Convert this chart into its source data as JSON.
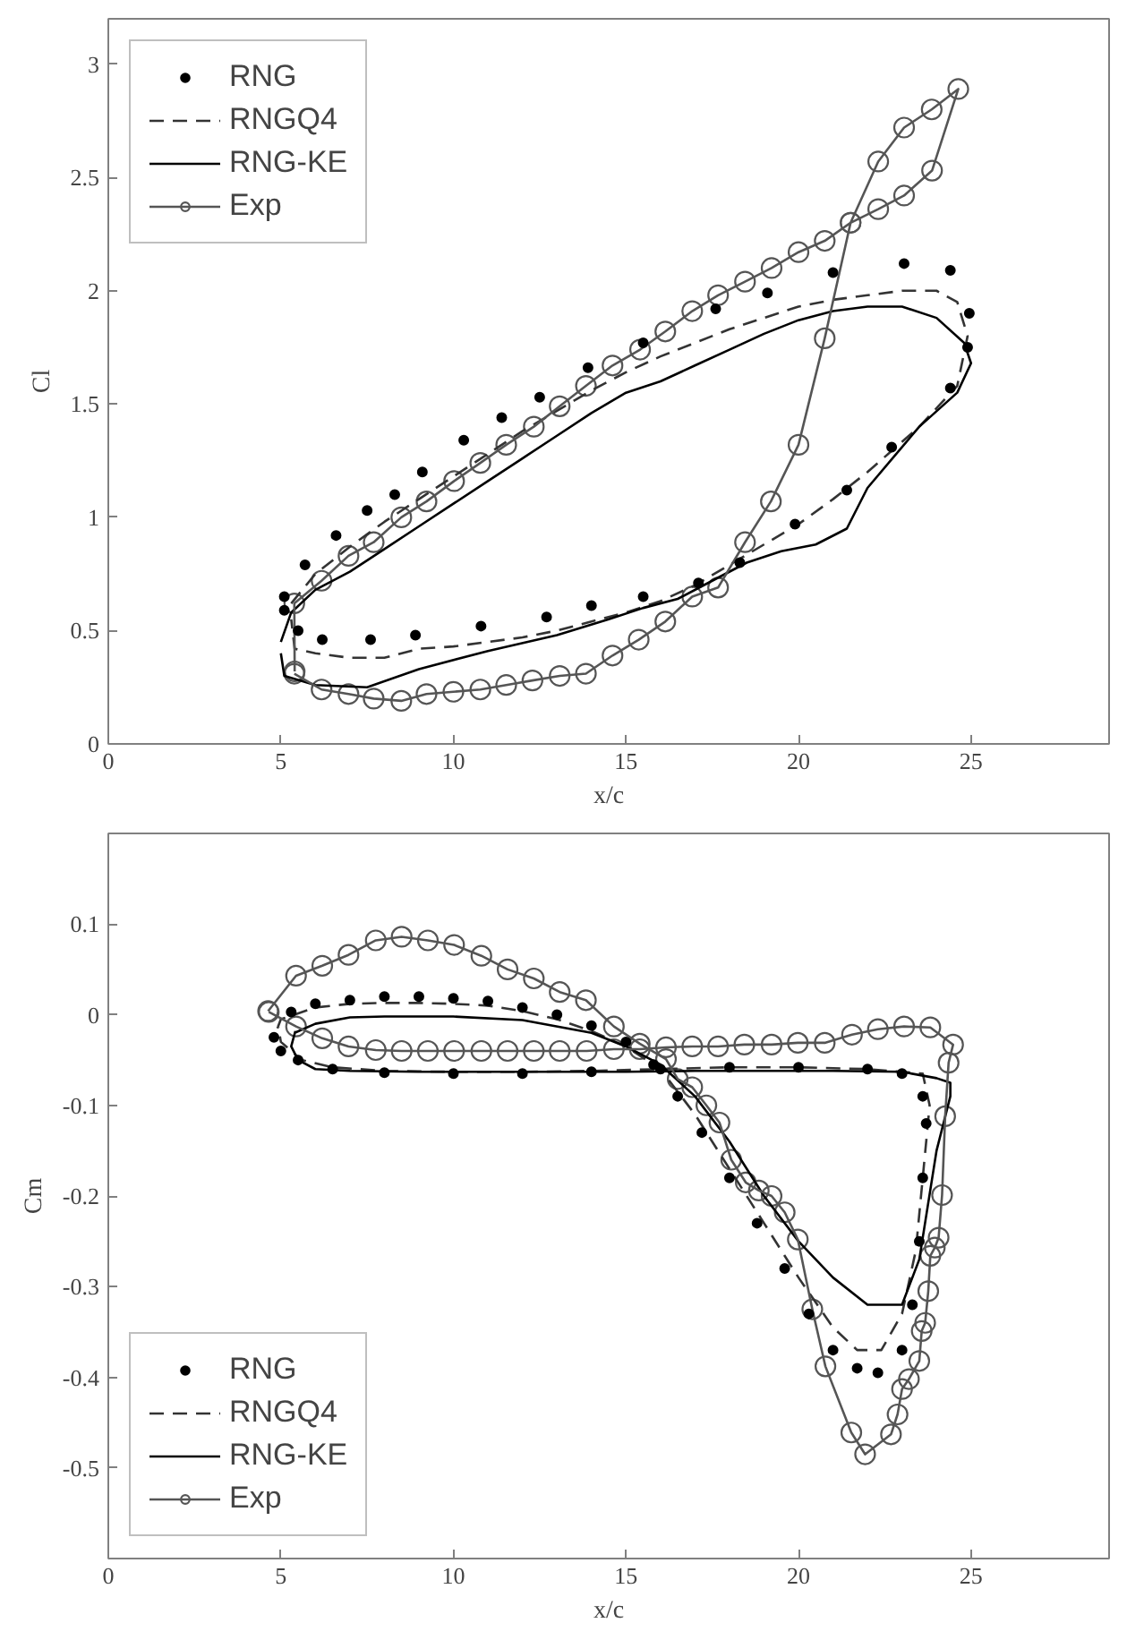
{
  "chart_data": [
    {
      "type": "line",
      "ylabel": "Cl",
      "xlabel": "x/c",
      "xlim": [
        0,
        29
      ],
      "ylim": [
        0,
        3.2
      ],
      "xticks": [
        0,
        5,
        10,
        15,
        20,
        25
      ],
      "yticks": [
        0,
        0.5,
        1,
        1.5,
        2,
        2.5,
        3
      ],
      "grid": false,
      "legend": "top left",
      "series": [
        {
          "name": "RNG",
          "type": "scatter",
          "marker": "circle",
          "color": "#000000",
          "x": [
            5.1,
            5.7,
            6.6,
            7.5,
            8.3,
            9.1,
            10.3,
            11.4,
            12.5,
            13.9,
            15.5,
            17.6,
            19.1,
            21,
            23.06,
            24.4,
            24.95,
            24.9,
            24.4,
            22.7,
            21.4,
            19.9,
            18.3,
            17.1,
            15.5,
            14,
            12.7,
            10.8,
            8.9,
            7.6,
            6.2,
            5.5,
            5.1
          ],
          "values": [
            0.65,
            0.79,
            0.92,
            1.03,
            1.1,
            1.2,
            1.34,
            1.44,
            1.53,
            1.66,
            1.77,
            1.92,
            1.99,
            2.08,
            2.12,
            2.09,
            1.9,
            1.75,
            1.57,
            1.31,
            1.12,
            0.97,
            0.8,
            0.71,
            0.65,
            0.61,
            0.56,
            0.52,
            0.48,
            0.46,
            0.46,
            0.5,
            0.59
          ]
        },
        {
          "name": "RNGQ4",
          "line_style": "dashed",
          "color": "#333333",
          "x": [
            5.3,
            6,
            7,
            8,
            9,
            10,
            11,
            12,
            13,
            14,
            15,
            16,
            17,
            18,
            19,
            20,
            21,
            22,
            23,
            24,
            24.6,
            24.9,
            24.6,
            23.5,
            22,
            21,
            20,
            19,
            18,
            17,
            16,
            15,
            14,
            13,
            12,
            11,
            10,
            9,
            8,
            7,
            6,
            5.4,
            5.3
          ],
          "values": [
            0.62,
            0.75,
            0.87,
            0.98,
            1.08,
            1.18,
            1.28,
            1.38,
            1.47,
            1.56,
            1.64,
            1.71,
            1.77,
            1.83,
            1.88,
            1.93,
            1.96,
            1.98,
            2.0,
            2.0,
            1.95,
            1.8,
            1.58,
            1.4,
            1.2,
            1.08,
            0.97,
            0.88,
            0.79,
            0.7,
            0.63,
            0.58,
            0.54,
            0.5,
            0.47,
            0.45,
            0.43,
            0.42,
            0.38,
            0.38,
            0.4,
            0.42,
            0.55
          ]
        },
        {
          "name": "RNG-KE",
          "line_style": "solid",
          "color": "#000000",
          "x": [
            5.0,
            5.3,
            6,
            7,
            8,
            9,
            10,
            11,
            12,
            13,
            14,
            15,
            16,
            17,
            18,
            19,
            20,
            21,
            22,
            23,
            24,
            24.8,
            25,
            24.6,
            23.5,
            22,
            21.4,
            20.5,
            19.5,
            18.5,
            17.5,
            16.5,
            15.5,
            14.5,
            13,
            11,
            9,
            7.5,
            6,
            5.1,
            5.0
          ],
          "values": [
            0.45,
            0.58,
            0.68,
            0.76,
            0.86,
            0.96,
            1.06,
            1.16,
            1.26,
            1.36,
            1.46,
            1.55,
            1.6,
            1.67,
            1.74,
            1.81,
            1.87,
            1.91,
            1.93,
            1.93,
            1.88,
            1.77,
            1.68,
            1.55,
            1.4,
            1.13,
            0.95,
            0.88,
            0.85,
            0.8,
            0.72,
            0.64,
            0.6,
            0.55,
            0.48,
            0.41,
            0.33,
            0.25,
            0.26,
            0.3,
            0.4
          ]
        },
        {
          "name": "Exp",
          "marker": "circle",
          "line_style": "solid",
          "color": "#555555",
          "x": [
            5.39,
            6.18,
            6.96,
            7.69,
            8.49,
            9.22,
            10.0,
            10.78,
            11.53,
            12.29,
            13.08,
            13.84,
            14.61,
            15.37,
            16.14,
            16.92,
            17.67,
            18.45,
            19.2,
            20.0,
            20.76,
            21.51,
            22.31,
            23.06,
            23.86,
            24.63,
            23.87,
            23.06,
            22.31,
            21.51,
            20.76,
            20.0,
            19.22,
            18.45,
            17.67,
            16.92,
            16.14,
            15.41,
            14.61,
            13.84,
            13.08,
            12.33,
            11.53,
            10.78,
            10.02,
            9.22,
            8.49,
            7.69,
            6.96,
            6.18,
            5.39,
            5.4
          ],
          "values": [
            0.31,
            0.24,
            0.22,
            0.2,
            0.19,
            0.22,
            0.23,
            0.24,
            0.26,
            0.28,
            0.3,
            0.31,
            0.39,
            0.46,
            0.54,
            0.65,
            0.69,
            0.89,
            1.07,
            1.32,
            1.79,
            2.3,
            2.57,
            2.72,
            2.8,
            2.89,
            2.53,
            2.42,
            2.36,
            2.3,
            2.22,
            2.17,
            2.1,
            2.04,
            1.98,
            1.91,
            1.82,
            1.74,
            1.67,
            1.58,
            1.49,
            1.4,
            1.32,
            1.24,
            1.16,
            1.07,
            1.0,
            0.89,
            0.83,
            0.72,
            0.62,
            0.32
          ]
        }
      ]
    },
    {
      "type": "line",
      "ylabel": "Cm",
      "xlabel": "x/c",
      "xlim": [
        0,
        29
      ],
      "ylim": [
        -0.6,
        0.2
      ],
      "xticks": [
        0,
        5,
        10,
        15,
        20,
        25
      ],
      "yticks": [
        -0.5,
        -0.4,
        -0.3,
        -0.2,
        -0.1,
        0,
        0.1
      ],
      "grid": false,
      "legend": "bottom left",
      "series": [
        {
          "name": "RNG",
          "type": "scatter",
          "marker": "circle",
          "color": "#000000",
          "x": [
            4.8,
            5.3,
            6,
            7,
            8,
            9,
            10,
            11,
            12,
            13,
            14,
            15,
            15.8,
            16.5,
            17.2,
            18,
            18.8,
            19.6,
            20.3,
            21,
            21.7,
            22.3,
            23,
            23.3,
            23.5,
            23.6,
            23.7,
            23.6,
            23,
            22,
            20,
            18,
            16,
            14,
            12,
            10,
            8,
            6.5,
            5.5,
            5.0
          ],
          "values": [
            -0.025,
            0.003,
            0.012,
            0.016,
            0.02,
            0.02,
            0.018,
            0.015,
            0.008,
            0.0,
            -0.012,
            -0.03,
            -0.055,
            -0.09,
            -0.13,
            -0.18,
            -0.23,
            -0.28,
            -0.33,
            -0.37,
            -0.39,
            -0.395,
            -0.37,
            -0.32,
            -0.25,
            -0.18,
            -0.12,
            -0.09,
            -0.065,
            -0.06,
            -0.058,
            -0.058,
            -0.06,
            -0.063,
            -0.065,
            -0.065,
            -0.064,
            -0.06,
            -0.05,
            -0.04
          ]
        },
        {
          "name": "RNGQ4",
          "line_style": "dashed",
          "color": "#333333",
          "x": [
            4.9,
            5.0,
            6,
            7,
            8,
            9,
            10,
            11,
            12,
            13,
            14,
            15,
            16,
            17,
            18,
            19,
            20,
            21,
            21.7,
            22.4,
            23,
            23.4,
            23.6,
            23.8,
            23.6,
            22,
            20,
            18,
            16,
            14,
            12,
            10,
            8,
            6.5,
            5.6,
            5.0,
            4.92
          ],
          "values": [
            -0.015,
            -0.005,
            0.008,
            0.012,
            0.013,
            0.013,
            0.012,
            0.01,
            0.004,
            -0.005,
            -0.018,
            -0.035,
            -0.06,
            -0.11,
            -0.17,
            -0.23,
            -0.29,
            -0.345,
            -0.37,
            -0.37,
            -0.33,
            -0.26,
            -0.18,
            -0.1,
            -0.065,
            -0.06,
            -0.058,
            -0.058,
            -0.06,
            -0.062,
            -0.063,
            -0.063,
            -0.062,
            -0.058,
            -0.05,
            -0.03,
            -0.012
          ]
        },
        {
          "name": "RNG-KE",
          "line_style": "solid",
          "color": "#000000",
          "x": [
            5.4,
            6,
            7,
            8,
            10,
            12,
            14,
            15,
            16,
            17,
            18,
            19,
            20,
            21,
            22,
            23,
            23.5,
            24,
            24.4,
            24.4,
            24,
            23,
            21,
            19,
            17,
            15,
            13,
            11,
            9,
            7,
            6,
            5.5,
            5.3,
            5.42
          ],
          "values": [
            -0.02,
            -0.01,
            -0.003,
            -0.002,
            -0.002,
            -0.006,
            -0.02,
            -0.035,
            -0.055,
            -0.09,
            -0.14,
            -0.2,
            -0.25,
            -0.29,
            -0.32,
            -0.32,
            -0.27,
            -0.15,
            -0.09,
            -0.075,
            -0.07,
            -0.063,
            -0.062,
            -0.062,
            -0.062,
            -0.063,
            -0.063,
            -0.063,
            -0.063,
            -0.062,
            -0.06,
            -0.05,
            -0.035,
            -0.018
          ]
        },
        {
          "name": "Exp",
          "marker": "circle",
          "line_style": "solid",
          "color": "#555555",
          "x": [
            4.63,
            5.44,
            6.2,
            6.96,
            7.75,
            8.5,
            9.26,
            10.02,
            10.81,
            11.57,
            12.33,
            13.08,
            13.84,
            14.65,
            15.4,
            16.16,
            16.5,
            16.92,
            17.33,
            17.71,
            18.05,
            18.47,
            18.85,
            19.22,
            19.6,
            19.98,
            20.4,
            20.78,
            21.53,
            21.93,
            22.68,
            22.87,
            23.0,
            23.2,
            23.5,
            23.57,
            23.67,
            23.76,
            23.82,
            23.95,
            24.06,
            24.16,
            24.25,
            24.35,
            24.48,
            23.82,
            23.06,
            22.3,
            21.55,
            20.76,
            19.98,
            19.22,
            18.43,
            17.67,
            16.92,
            16.16,
            15.4,
            14.65,
            13.86,
            13.08,
            12.33,
            11.57,
            10.81,
            10.02,
            9.26,
            8.5,
            7.75,
            6.96,
            6.2,
            5.44,
            4.65
          ],
          "values": [
            0.004,
            0.043,
            0.054,
            0.066,
            0.082,
            0.086,
            0.082,
            0.077,
            0.065,
            0.05,
            0.04,
            0.025,
            0.016,
            -0.013,
            -0.032,
            -0.049,
            -0.071,
            -0.08,
            -0.1,
            -0.119,
            -0.16,
            -0.185,
            -0.194,
            -0.2,
            -0.218,
            -0.248,
            -0.325,
            -0.388,
            -0.461,
            -0.485,
            -0.463,
            -0.441,
            -0.413,
            -0.402,
            -0.382,
            -0.349,
            -0.34,
            -0.305,
            -0.266,
            -0.257,
            -0.246,
            -0.199,
            -0.112,
            -0.053,
            -0.033,
            -0.014,
            -0.013,
            -0.016,
            -0.022,
            -0.031,
            -0.031,
            -0.033,
            -0.033,
            -0.035,
            -0.035,
            -0.036,
            -0.038,
            -0.038,
            -0.04,
            -0.04,
            -0.04,
            -0.04,
            -0.04,
            -0.04,
            -0.04,
            -0.04,
            -0.039,
            -0.035,
            -0.026,
            -0.013,
            0.003
          ]
        }
      ]
    }
  ]
}
